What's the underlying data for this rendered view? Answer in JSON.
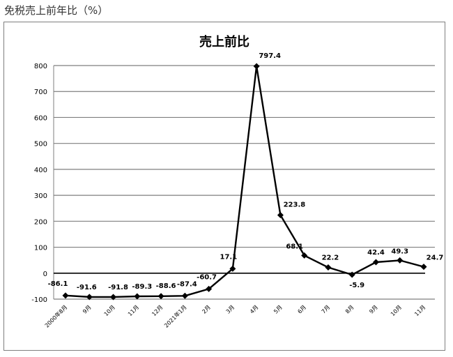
{
  "page_heading": "免税売上前年比（%）",
  "chart_data": {
    "type": "line",
    "title": "売上前比",
    "xlabel": "",
    "ylabel": "",
    "categories": [
      "2000年8月",
      "9月",
      "10月",
      "11月",
      "12月",
      "2021年1月",
      "2月",
      "3月",
      "4月",
      "5月",
      "6月",
      "7月",
      "8月",
      "9月",
      "10月",
      "11月"
    ],
    "series": [
      {
        "values": [
          -86.1,
          -91.6,
          -91.8,
          -89.3,
          -88.6,
          -87.4,
          -60.7,
          17.1,
          797.4,
          223.8,
          68.1,
          22.2,
          -5.9,
          42.4,
          49.3,
          24.7
        ],
        "labels": [
          "-86.1",
          "-91.6",
          "-91.8",
          "-89.3",
          "-88.6",
          "-87.4",
          "-60.7",
          "17.1",
          "797.4",
          "223.8",
          "68.1",
          "22.2",
          "-5.9",
          "42.4",
          "49.3",
          "24.7"
        ]
      }
    ],
    "ylim": [
      -100,
      800
    ],
    "yticks": [
      -100,
      0,
      100,
      200,
      300,
      400,
      500,
      600,
      700,
      800
    ],
    "grid": true,
    "legend": "none",
    "colors": {
      "line": "#000000",
      "grid": "#7f7f7f",
      "zero_line": "#000000"
    }
  }
}
